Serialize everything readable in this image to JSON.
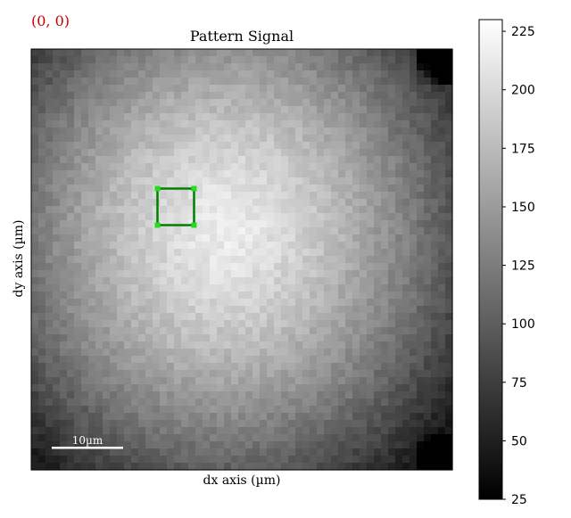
{
  "cursor_readout": "(0, 0)",
  "plot": {
    "title": "Pattern Signal",
    "xlabel": "dx axis (µm)",
    "ylabel": "dy axis (µm)",
    "scalebar_label": "10µm"
  },
  "colorbar": {
    "min": 25,
    "max": 230,
    "ticks": [
      25,
      50,
      75,
      100,
      125,
      150,
      175,
      200,
      225
    ]
  },
  "roi": {
    "color": "#008000",
    "handle_color": "#22dd22"
  },
  "chart_data": {
    "type": "heatmap",
    "title": "Pattern Signal",
    "xlabel": "dx axis (µm)",
    "ylabel": "dy axis (µm)",
    "colormap": "gray",
    "value_range": [
      25,
      230
    ],
    "grid": false,
    "legend": "colorbar-right"
  }
}
